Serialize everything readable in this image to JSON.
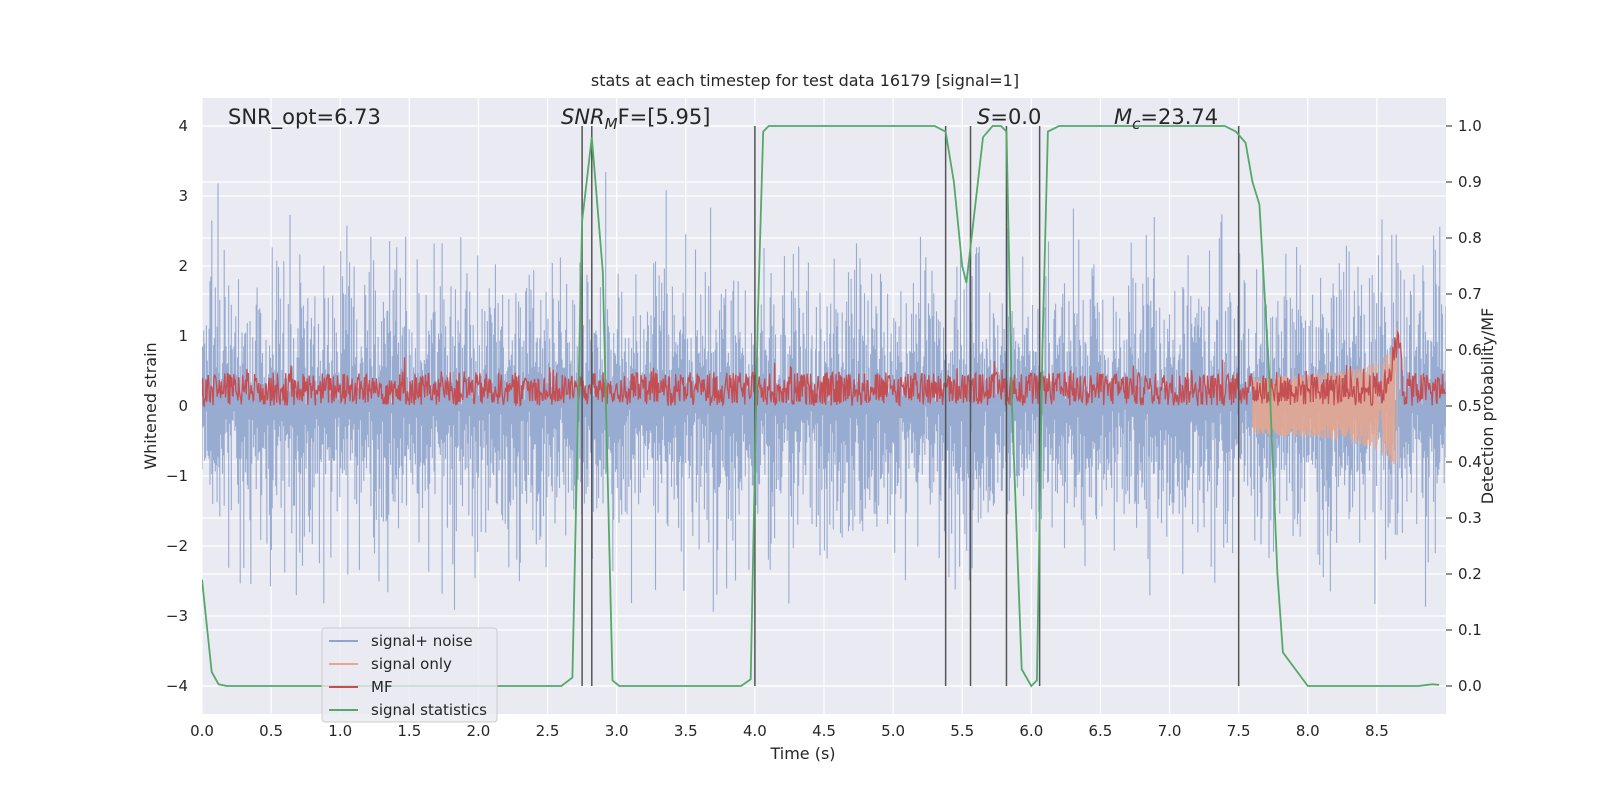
{
  "chart_data": {
    "type": "line",
    "title": "stats at each timestep for test data 16179 [signal=1]",
    "xlabel": "Time (s)",
    "ylabel_left": "Whitened strain",
    "ylabel_right": "Detection probability/MF",
    "xlim": [
      0.0,
      9.0
    ],
    "ylim_left": [
      -4.4,
      4.4
    ],
    "ylim_right": [
      -0.05,
      1.05
    ],
    "x_ticks": [
      "0.0",
      "0.5",
      "1.0",
      "1.5",
      "2.0",
      "2.5",
      "3.0",
      "3.5",
      "4.0",
      "4.5",
      "5.0",
      "5.5",
      "6.0",
      "6.5",
      "7.0",
      "7.5",
      "8.0",
      "8.5"
    ],
    "y_left_ticks": [
      "−4",
      "−3",
      "−2",
      "−1",
      "0",
      "1",
      "2",
      "3",
      "4"
    ],
    "y_right_ticks": [
      "0.0",
      "0.1",
      "0.2",
      "0.3",
      "0.4",
      "0.5",
      "0.6",
      "0.7",
      "0.8",
      "0.9",
      "1.0"
    ],
    "grid": true,
    "legend_position": "lower-left",
    "colors": {
      "noise": "#8fa4cc",
      "signal": "#e8a68c",
      "mf": "#c44e52",
      "stats": "#55a868",
      "vlines": "#555555",
      "background": "#eaeaf2",
      "grid": "#ffffff"
    },
    "legend": [
      {
        "label": "signal+ noise",
        "color": "#8fa4cc"
      },
      {
        "label": "signal only",
        "color": "#e8a68c"
      },
      {
        "label": "MF",
        "color": "#c44e52"
      },
      {
        "label": "signal statistics",
        "color": "#55a868"
      }
    ],
    "annotations": {
      "snr_opt": "SNR_opt=6.73",
      "snr_mf_base": "SNR",
      "snr_mf_sub": "M",
      "snr_mf_tail": "F=[5.95]",
      "s_italic": "S",
      "s_tail": "=0.0",
      "mc_base": "M",
      "mc_sub": "c",
      "mc_tail": "=23.74"
    },
    "series": [
      {
        "name": "signal statistics",
        "axis": "right",
        "x": [
          0.0,
          0.07,
          0.12,
          0.18,
          0.3,
          0.5,
          1.0,
          1.5,
          2.0,
          2.4,
          2.6,
          2.68,
          2.75,
          2.82,
          2.9,
          2.97,
          3.02,
          3.5,
          3.9,
          3.97,
          4.02,
          4.06,
          4.1,
          4.2,
          5.0,
          5.3,
          5.38,
          5.44,
          5.5,
          5.53,
          5.6,
          5.65,
          5.72,
          5.78,
          5.82,
          5.86,
          5.93,
          6.0,
          6.04,
          6.08,
          6.12,
          6.2,
          7.0,
          7.4,
          7.48,
          7.55,
          7.6,
          7.65,
          7.72,
          7.78,
          7.82,
          8.0,
          8.5,
          8.8,
          8.9,
          8.95
        ],
        "values": [
          0.19,
          0.025,
          0.003,
          0.0,
          0.0,
          0.0,
          0.0,
          0.0,
          0.0,
          0.0,
          0.0,
          0.015,
          0.83,
          0.98,
          0.74,
          0.01,
          0.0,
          0.0,
          0.0,
          0.012,
          0.65,
          0.99,
          1.0,
          1.0,
          1.0,
          1.0,
          0.99,
          0.9,
          0.75,
          0.72,
          0.87,
          0.98,
          1.0,
          1.0,
          0.99,
          0.5,
          0.03,
          0.0,
          0.01,
          0.6,
          0.99,
          1.0,
          1.0,
          1.0,
          0.99,
          0.97,
          0.9,
          0.86,
          0.56,
          0.2,
          0.06,
          0.0,
          0.0,
          0.0,
          0.003,
          0.002
        ]
      }
    ],
    "noise_amplitude_left": 1.6,
    "mf_range_right": [
      0.5,
      0.58
    ],
    "signal_chirp": {
      "start": 7.6,
      "end": 8.65,
      "peak_left": 1.35
    },
    "vertical_lines_x": [
      2.75,
      2.82,
      4.0,
      5.38,
      5.56,
      5.82,
      6.06,
      7.5
    ]
  }
}
